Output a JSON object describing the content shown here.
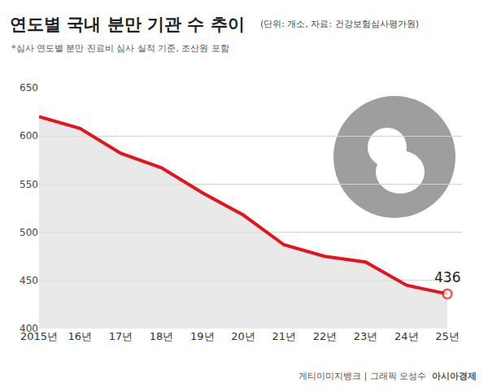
{
  "chart_data": {
    "type": "line",
    "title": "연도별 국내 분만 기관 수 추이",
    "subtitle": "(단위: 개소, 자료: 건강보험심사평가원)",
    "note": "*심사 연도별 분만 진료비 심사 실적 기준, 조산원 포함",
    "source": "게티이미지뱅크 | 그래픽 오성수",
    "brand": "아시아경제",
    "categories": [
      "2015년",
      "16년",
      "17년",
      "18년",
      "19년",
      "20년",
      "21년",
      "22년",
      "23년",
      "24년",
      "25년"
    ],
    "values": [
      620,
      608,
      582,
      567,
      541,
      518,
      487,
      475,
      469,
      445,
      436
    ],
    "color": "#e3141c",
    "ylim": [
      400,
      650
    ],
    "yticks": [
      400,
      450,
      500,
      550,
      600,
      650
    ],
    "grid": true,
    "annotations": [
      {
        "x": "25년",
        "y": 436,
        "text": "436"
      }
    ]
  }
}
